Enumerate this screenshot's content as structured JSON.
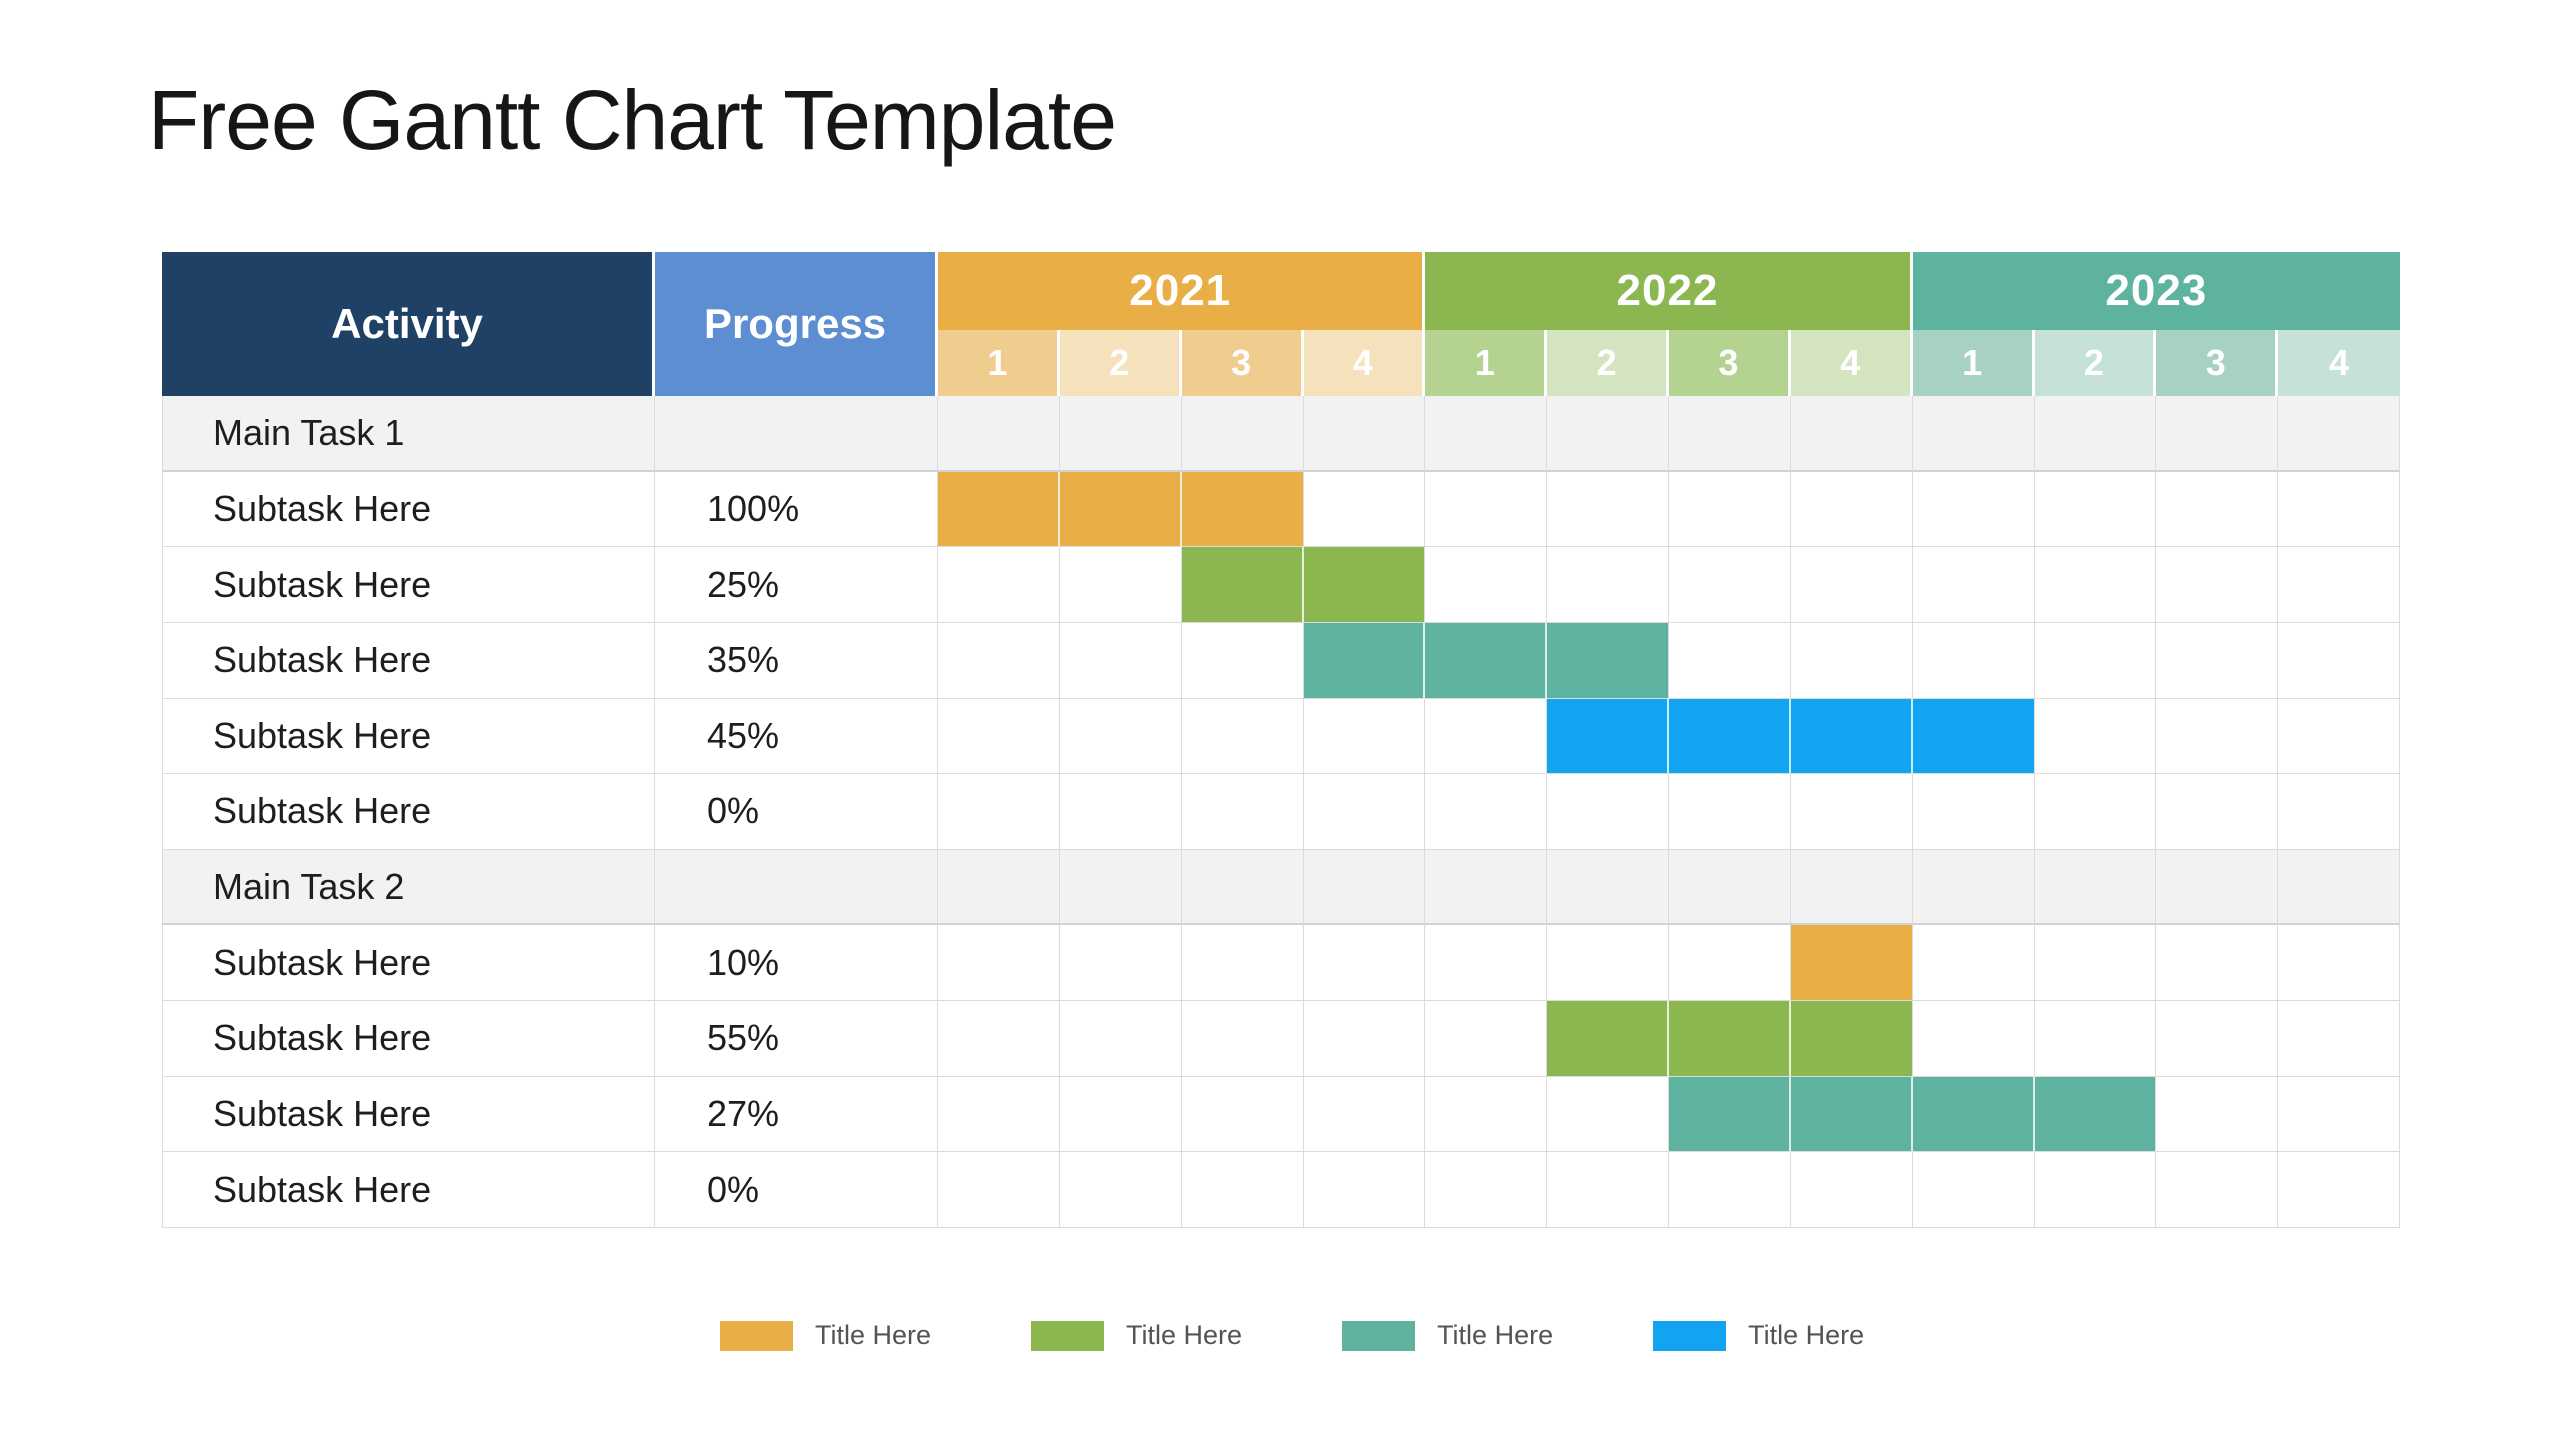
{
  "title": "Free Gantt Chart Template",
  "colors": {
    "navy": "#1F4165",
    "progress_blue": "#5C8ED1",
    "orange": "#EAAE47",
    "green": "#8CB750",
    "teal": "#5DB2A0",
    "blue": "#12A4F0",
    "orange_tint_strong": "#F0CD8E",
    "orange_tint_light": "#F5E1BC",
    "green_tint_strong": "#B4D390",
    "green_tint_light": "#D4E4C1",
    "teal_tint_strong": "#A7D2C3",
    "teal_tint_light": "#C6E2D8",
    "section_bg": "#F2F2F2",
    "gridline": "#DCDCDC"
  },
  "table": {
    "activity_header": "Activity",
    "progress_header": "Progress",
    "years": [
      {
        "label": "2021",
        "color_key": "orange",
        "tint_keys": [
          "orange_tint_strong",
          "orange_tint_light"
        ],
        "quarters": [
          "1",
          "2",
          "3",
          "4"
        ]
      },
      {
        "label": "2022",
        "color_key": "green",
        "tint_keys": [
          "green_tint_strong",
          "green_tint_light"
        ],
        "quarters": [
          "1",
          "2",
          "3",
          "4"
        ]
      },
      {
        "label": "2023",
        "color_key": "teal",
        "tint_keys": [
          "teal_tint_strong",
          "teal_tint_light"
        ],
        "quarters": [
          "1",
          "2",
          "3",
          "4"
        ]
      }
    ],
    "rows": [
      {
        "type": "section",
        "activity": "Main Task 1",
        "progress": "",
        "bar": null
      },
      {
        "type": "task",
        "activity": "Subtask Here",
        "progress": "100%",
        "bar": {
          "color_key": "orange",
          "start": 1,
          "span": 3
        }
      },
      {
        "type": "task",
        "activity": "Subtask Here",
        "progress": "25%",
        "bar": {
          "color_key": "green",
          "start": 3,
          "span": 2
        }
      },
      {
        "type": "task",
        "activity": "Subtask Here",
        "progress": "35%",
        "bar": {
          "color_key": "teal",
          "start": 4,
          "span": 3
        }
      },
      {
        "type": "task",
        "activity": "Subtask Here",
        "progress": "45%",
        "bar": {
          "color_key": "blue",
          "start": 6,
          "span": 4
        }
      },
      {
        "type": "task",
        "activity": "Subtask Here",
        "progress": "0%",
        "bar": null
      },
      {
        "type": "section",
        "activity": "Main Task 2",
        "progress": "",
        "bar": null
      },
      {
        "type": "task",
        "activity": "Subtask Here",
        "progress": "10%",
        "bar": {
          "color_key": "orange",
          "start": 8,
          "span": 1
        }
      },
      {
        "type": "task",
        "activity": "Subtask Here",
        "progress": "55%",
        "bar": {
          "color_key": "green",
          "start": 6,
          "span": 3
        }
      },
      {
        "type": "task",
        "activity": "Subtask Here",
        "progress": "27%",
        "bar": {
          "color_key": "teal",
          "start": 7,
          "span": 4
        }
      },
      {
        "type": "task",
        "activity": "Subtask Here",
        "progress": "0%",
        "bar": null
      }
    ]
  },
  "legend": [
    {
      "label": "Title Here",
      "color_key": "orange"
    },
    {
      "label": "Title Here",
      "color_key": "green"
    },
    {
      "label": "Title Here",
      "color_key": "teal"
    },
    {
      "label": "Title Here",
      "color_key": "blue"
    }
  ],
  "chart_data": {
    "type": "table",
    "subtype": "gantt",
    "title": "Free Gantt Chart Template",
    "columns": [
      "Activity",
      "Progress",
      "2021 Q1",
      "2021 Q2",
      "2021 Q3",
      "2021 Q4",
      "2022 Q1",
      "2022 Q2",
      "2022 Q3",
      "2022 Q4",
      "2023 Q1",
      "2023 Q2",
      "2023 Q3",
      "2023 Q4"
    ],
    "tasks": [
      {
        "activity": "Main Task 1",
        "section": true,
        "progress": null,
        "bar": null
      },
      {
        "activity": "Subtask Here",
        "section": false,
        "progress": "100%",
        "bar": {
          "from": "2021 Q1",
          "to": "2021 Q3",
          "color": "#EAAE47"
        }
      },
      {
        "activity": "Subtask Here",
        "section": false,
        "progress": "25%",
        "bar": {
          "from": "2021 Q3",
          "to": "2021 Q4",
          "color": "#8CB750"
        }
      },
      {
        "activity": "Subtask Here",
        "section": false,
        "progress": "35%",
        "bar": {
          "from": "2021 Q4",
          "to": "2022 Q2",
          "color": "#5DB2A0"
        }
      },
      {
        "activity": "Subtask Here",
        "section": false,
        "progress": "45%",
        "bar": {
          "from": "2022 Q2",
          "to": "2023 Q1",
          "color": "#12A4F0"
        }
      },
      {
        "activity": "Subtask Here",
        "section": false,
        "progress": "0%",
        "bar": null
      },
      {
        "activity": "Main Task 2",
        "section": true,
        "progress": null,
        "bar": null
      },
      {
        "activity": "Subtask Here",
        "section": false,
        "progress": "10%",
        "bar": {
          "from": "2022 Q4",
          "to": "2022 Q4",
          "color": "#EAAE47"
        }
      },
      {
        "activity": "Subtask Here",
        "section": false,
        "progress": "55%",
        "bar": {
          "from": "2022 Q2",
          "to": "2022 Q4",
          "color": "#8CB750"
        }
      },
      {
        "activity": "Subtask Here",
        "section": false,
        "progress": "27%",
        "bar": {
          "from": "2022 Q3",
          "to": "2023 Q2",
          "color": "#5DB2A0"
        }
      },
      {
        "activity": "Subtask Here",
        "section": false,
        "progress": "0%",
        "bar": null
      }
    ],
    "legend_entries": [
      "Title Here",
      "Title Here",
      "Title Here",
      "Title Here"
    ],
    "layout": {
      "legend_position": "bottom",
      "grid": true,
      "quarters_per_year": 4
    }
  }
}
